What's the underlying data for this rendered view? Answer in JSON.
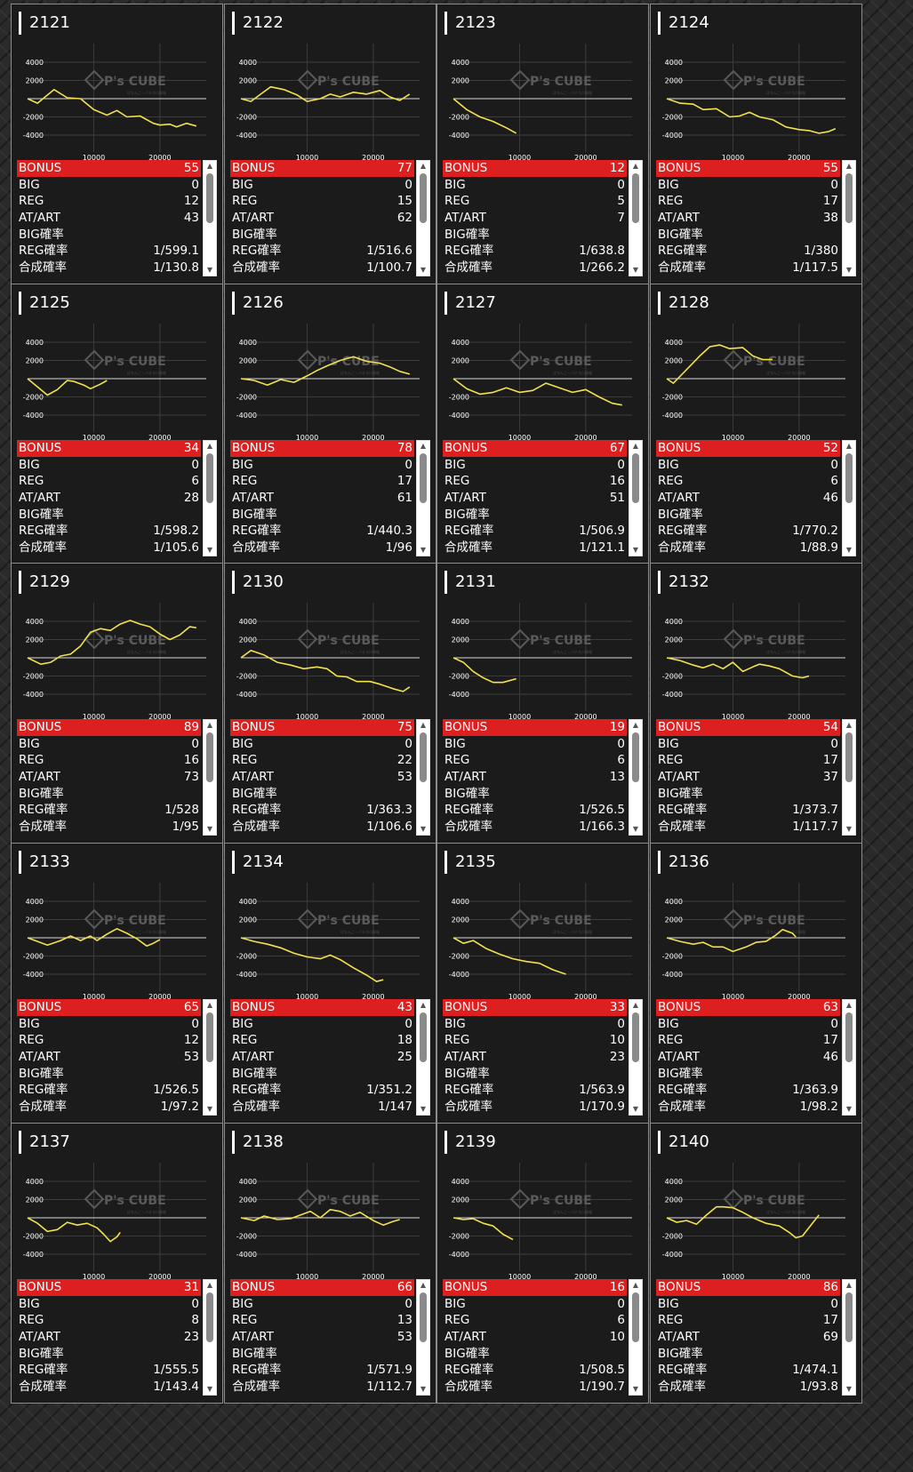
{
  "labels": {
    "bonus": "BONUS",
    "big": "BIG",
    "reg": "REG",
    "at": "AT/ART",
    "big_rate": "BIG確率",
    "reg_rate": "REG確率",
    "total_rate": "合成確率",
    "y_ticks": [
      "4000",
      "2000",
      "-2000",
      "-4000"
    ],
    "x_ticks": [
      "10000",
      "20000"
    ],
    "watermark": "P's CUBE",
    "watermark_small": "ぱちんこ・パチスロ情報",
    "scroll_up": "▲",
    "scroll_down": "▼"
  },
  "colors": {
    "line": "#f2e34c",
    "bonus_bar": "#dd1f1f",
    "card_bg": "#1b1b1b",
    "card_border": "#8c8c8c"
  },
  "machines": [
    {
      "id": "2121",
      "bonus": "55",
      "big": "0",
      "reg": "12",
      "at": "43",
      "big_rate": "",
      "reg_rate": "1/599.1",
      "total_rate": "1/130.8",
      "graph": [
        [
          0,
          0
        ],
        [
          1500,
          -500
        ],
        [
          4000,
          1000
        ],
        [
          6000,
          100
        ],
        [
          8000,
          0
        ],
        [
          10000,
          -1200
        ],
        [
          12000,
          -1800
        ],
        [
          13500,
          -1300
        ],
        [
          15000,
          -2000
        ],
        [
          17000,
          -1900
        ],
        [
          19000,
          -2700
        ],
        [
          20000,
          -2900
        ],
        [
          21500,
          -2800
        ],
        [
          22500,
          -3100
        ],
        [
          24000,
          -2700
        ],
        [
          25500,
          -3000
        ]
      ]
    },
    {
      "id": "2122",
      "bonus": "77",
      "big": "0",
      "reg": "15",
      "at": "62",
      "big_rate": "",
      "reg_rate": "1/516.6",
      "total_rate": "1/100.7",
      "graph": [
        [
          0,
          0
        ],
        [
          1500,
          -300
        ],
        [
          3000,
          500
        ],
        [
          4500,
          1300
        ],
        [
          6500,
          1000
        ],
        [
          8500,
          400
        ],
        [
          10000,
          -300
        ],
        [
          12000,
          0
        ],
        [
          13500,
          500
        ],
        [
          15000,
          200
        ],
        [
          17000,
          700
        ],
        [
          19000,
          500
        ],
        [
          21000,
          900
        ],
        [
          22500,
          200
        ],
        [
          24000,
          -200
        ],
        [
          25500,
          500
        ]
      ]
    },
    {
      "id": "2123",
      "bonus": "12",
      "big": "0",
      "reg": "5",
      "at": "7",
      "big_rate": "",
      "reg_rate": "1/638.8",
      "total_rate": "1/266.2",
      "graph": [
        [
          0,
          0
        ],
        [
          2000,
          -1200
        ],
        [
          4000,
          -2000
        ],
        [
          6000,
          -2500
        ],
        [
          8000,
          -3200
        ],
        [
          9500,
          -3800
        ]
      ]
    },
    {
      "id": "2124",
      "bonus": "55",
      "big": "0",
      "reg": "17",
      "at": "38",
      "big_rate": "",
      "reg_rate": "1/380",
      "total_rate": "1/117.5",
      "graph": [
        [
          0,
          0
        ],
        [
          2000,
          -500
        ],
        [
          4000,
          -600
        ],
        [
          5500,
          -1200
        ],
        [
          7500,
          -1100
        ],
        [
          9500,
          -2000
        ],
        [
          11000,
          -1900
        ],
        [
          12500,
          -1500
        ],
        [
          14000,
          -2000
        ],
        [
          16000,
          -2300
        ],
        [
          18000,
          -3100
        ],
        [
          20000,
          -3400
        ],
        [
          21500,
          -3500
        ],
        [
          23000,
          -3800
        ],
        [
          24500,
          -3600
        ],
        [
          25500,
          -3300
        ]
      ]
    },
    {
      "id": "2125",
      "bonus": "34",
      "big": "0",
      "reg": "6",
      "at": "28",
      "big_rate": "",
      "reg_rate": "1/598.2",
      "total_rate": "1/105.6",
      "graph": [
        [
          0,
          0
        ],
        [
          1500,
          -900
        ],
        [
          3000,
          -1800
        ],
        [
          4500,
          -1200
        ],
        [
          6000,
          -200
        ],
        [
          7000,
          -300
        ],
        [
          8500,
          -700
        ],
        [
          9500,
          -1100
        ],
        [
          11000,
          -600
        ],
        [
          12000,
          -200
        ]
      ]
    },
    {
      "id": "2126",
      "bonus": "78",
      "big": "0",
      "reg": "17",
      "at": "61",
      "big_rate": "",
      "reg_rate": "1/440.3",
      "total_rate": "1/96",
      "graph": [
        [
          0,
          0
        ],
        [
          2000,
          -200
        ],
        [
          4000,
          -700
        ],
        [
          6000,
          -100
        ],
        [
          8000,
          -400
        ],
        [
          10000,
          300
        ],
        [
          11500,
          900
        ],
        [
          13000,
          1400
        ],
        [
          15000,
          2000
        ],
        [
          17000,
          2400
        ],
        [
          19000,
          1900
        ],
        [
          21000,
          1700
        ],
        [
          22500,
          1300
        ],
        [
          24000,
          800
        ],
        [
          25500,
          500
        ]
      ]
    },
    {
      "id": "2127",
      "bonus": "67",
      "big": "0",
      "reg": "16",
      "at": "51",
      "big_rate": "",
      "reg_rate": "1/506.9",
      "total_rate": "1/121.1",
      "graph": [
        [
          0,
          0
        ],
        [
          2000,
          -1100
        ],
        [
          4000,
          -1700
        ],
        [
          6000,
          -1500
        ],
        [
          8000,
          -1000
        ],
        [
          10000,
          -1500
        ],
        [
          12000,
          -1300
        ],
        [
          14000,
          -500
        ],
        [
          16000,
          -1000
        ],
        [
          18000,
          -1500
        ],
        [
          20000,
          -1200
        ],
        [
          22000,
          -2000
        ],
        [
          24000,
          -2700
        ],
        [
          25500,
          -2900
        ]
      ]
    },
    {
      "id": "2128",
      "bonus": "52",
      "big": "0",
      "reg": "6",
      "at": "46",
      "big_rate": "",
      "reg_rate": "1/770.2",
      "total_rate": "1/88.9",
      "graph": [
        [
          0,
          0
        ],
        [
          1000,
          -500
        ],
        [
          3000,
          1000
        ],
        [
          5000,
          2500
        ],
        [
          6500,
          3500
        ],
        [
          8000,
          3700
        ],
        [
          9500,
          3300
        ],
        [
          11500,
          3400
        ],
        [
          13000,
          2500
        ],
        [
          14500,
          2100
        ],
        [
          16000,
          2100
        ]
      ]
    },
    {
      "id": "2129",
      "bonus": "89",
      "big": "0",
      "reg": "16",
      "at": "73",
      "big_rate": "",
      "reg_rate": "1/528",
      "total_rate": "1/95",
      "graph": [
        [
          0,
          0
        ],
        [
          2000,
          -700
        ],
        [
          3500,
          -500
        ],
        [
          5000,
          200
        ],
        [
          6500,
          400
        ],
        [
          8000,
          1300
        ],
        [
          9500,
          2800
        ],
        [
          11000,
          3200
        ],
        [
          12500,
          3000
        ],
        [
          14000,
          3700
        ],
        [
          15500,
          4100
        ],
        [
          17000,
          3700
        ],
        [
          18500,
          3400
        ],
        [
          20000,
          2600
        ],
        [
          21500,
          2000
        ],
        [
          23000,
          2500
        ],
        [
          24500,
          3400
        ],
        [
          25500,
          3300
        ]
      ]
    },
    {
      "id": "2130",
      "bonus": "75",
      "big": "0",
      "reg": "22",
      "at": "53",
      "big_rate": "",
      "reg_rate": "1/363.3",
      "total_rate": "1/106.6",
      "graph": [
        [
          0,
          0
        ],
        [
          1500,
          800
        ],
        [
          3500,
          300
        ],
        [
          5500,
          -500
        ],
        [
          7500,
          -800
        ],
        [
          9500,
          -1200
        ],
        [
          11500,
          -1000
        ],
        [
          13000,
          -1200
        ],
        [
          14500,
          -2000
        ],
        [
          16000,
          -2100
        ],
        [
          17500,
          -2600
        ],
        [
          19500,
          -2600
        ],
        [
          21000,
          -2900
        ],
        [
          23000,
          -3400
        ],
        [
          24500,
          -3700
        ],
        [
          25500,
          -3200
        ]
      ]
    },
    {
      "id": "2131",
      "bonus": "19",
      "big": "0",
      "reg": "6",
      "at": "13",
      "big_rate": "",
      "reg_rate": "1/526.5",
      "total_rate": "1/166.3",
      "graph": [
        [
          0,
          0
        ],
        [
          1500,
          -500
        ],
        [
          3000,
          -1500
        ],
        [
          4500,
          -2200
        ],
        [
          6000,
          -2700
        ],
        [
          7500,
          -2700
        ],
        [
          9500,
          -2300
        ]
      ]
    },
    {
      "id": "2132",
      "bonus": "54",
      "big": "0",
      "reg": "17",
      "at": "37",
      "big_rate": "",
      "reg_rate": "1/373.7",
      "total_rate": "1/117.7",
      "graph": [
        [
          0,
          0
        ],
        [
          2000,
          -300
        ],
        [
          4000,
          -800
        ],
        [
          5500,
          -1100
        ],
        [
          7000,
          -700
        ],
        [
          8500,
          -1200
        ],
        [
          10000,
          -500
        ],
        [
          11500,
          -1500
        ],
        [
          13000,
          -1000
        ],
        [
          14000,
          -700
        ],
        [
          15500,
          -900
        ],
        [
          17000,
          -1200
        ],
        [
          19000,
          -2000
        ],
        [
          20500,
          -2200
        ],
        [
          21500,
          -2000
        ]
      ]
    },
    {
      "id": "2133",
      "bonus": "65",
      "big": "0",
      "reg": "12",
      "at": "53",
      "big_rate": "",
      "reg_rate": "1/526.5",
      "total_rate": "1/97.2",
      "graph": [
        [
          0,
          0
        ],
        [
          1500,
          -400
        ],
        [
          3000,
          -800
        ],
        [
          5000,
          -300
        ],
        [
          6500,
          200
        ],
        [
          8000,
          -300
        ],
        [
          9500,
          200
        ],
        [
          10500,
          -300
        ],
        [
          12000,
          400
        ],
        [
          13500,
          1000
        ],
        [
          15000,
          500
        ],
        [
          16500,
          -100
        ],
        [
          18000,
          -900
        ],
        [
          19000,
          -600
        ],
        [
          20000,
          -200
        ]
      ]
    },
    {
      "id": "2134",
      "bonus": "43",
      "big": "0",
      "reg": "18",
      "at": "25",
      "big_rate": "",
      "reg_rate": "1/351.2",
      "total_rate": "1/147",
      "graph": [
        [
          0,
          0
        ],
        [
          2000,
          -400
        ],
        [
          4000,
          -700
        ],
        [
          6000,
          -1100
        ],
        [
          8000,
          -1700
        ],
        [
          10000,
          -2100
        ],
        [
          12000,
          -2300
        ],
        [
          13500,
          -1900
        ],
        [
          15000,
          -2400
        ],
        [
          17000,
          -3300
        ],
        [
          19000,
          -4100
        ],
        [
          20500,
          -4800
        ],
        [
          21500,
          -4600
        ]
      ]
    },
    {
      "id": "2135",
      "bonus": "33",
      "big": "0",
      "reg": "10",
      "at": "23",
      "big_rate": "",
      "reg_rate": "1/563.9",
      "total_rate": "1/170.9",
      "graph": [
        [
          0,
          0
        ],
        [
          1500,
          -600
        ],
        [
          3000,
          -300
        ],
        [
          5000,
          -1200
        ],
        [
          7000,
          -1800
        ],
        [
          9000,
          -2300
        ],
        [
          11000,
          -2600
        ],
        [
          13000,
          -2800
        ],
        [
          15000,
          -3500
        ],
        [
          17000,
          -4000
        ]
      ]
    },
    {
      "id": "2136",
      "bonus": "63",
      "big": "0",
      "reg": "17",
      "at": "46",
      "big_rate": "",
      "reg_rate": "1/363.9",
      "total_rate": "1/98.2",
      "graph": [
        [
          0,
          0
        ],
        [
          2000,
          -400
        ],
        [
          4000,
          -700
        ],
        [
          5500,
          -500
        ],
        [
          7000,
          -1000
        ],
        [
          8500,
          -1000
        ],
        [
          10000,
          -1500
        ],
        [
          12000,
          -1000
        ],
        [
          13500,
          -500
        ],
        [
          15000,
          -400
        ],
        [
          16500,
          300
        ],
        [
          17500,
          900
        ],
        [
          19000,
          500
        ],
        [
          19500,
          100
        ]
      ]
    },
    {
      "id": "2137",
      "bonus": "31",
      "big": "0",
      "reg": "8",
      "at": "23",
      "big_rate": "",
      "reg_rate": "1/555.5",
      "total_rate": "1/143.4",
      "graph": [
        [
          0,
          0
        ],
        [
          1500,
          -600
        ],
        [
          3000,
          -1500
        ],
        [
          4500,
          -1300
        ],
        [
          6000,
          -500
        ],
        [
          7500,
          -800
        ],
        [
          9000,
          -600
        ],
        [
          10500,
          -1100
        ],
        [
          11500,
          -1800
        ],
        [
          12500,
          -2600
        ],
        [
          13500,
          -2100
        ],
        [
          14000,
          -1600
        ]
      ]
    },
    {
      "id": "2138",
      "bonus": "66",
      "big": "0",
      "reg": "13",
      "at": "53",
      "big_rate": "",
      "reg_rate": "1/571.9",
      "total_rate": "1/112.7",
      "graph": [
        [
          0,
          0
        ],
        [
          2000,
          -300
        ],
        [
          3500,
          200
        ],
        [
          5500,
          -200
        ],
        [
          7500,
          -100
        ],
        [
          9000,
          300
        ],
        [
          10500,
          700
        ],
        [
          12000,
          0
        ],
        [
          13500,
          900
        ],
        [
          15000,
          700
        ],
        [
          16500,
          200
        ],
        [
          18000,
          600
        ],
        [
          20000,
          -300
        ],
        [
          21500,
          -800
        ],
        [
          23000,
          -400
        ],
        [
          24000,
          -200
        ]
      ]
    },
    {
      "id": "2139",
      "bonus": "16",
      "big": "0",
      "reg": "6",
      "at": "10",
      "big_rate": "",
      "reg_rate": "1/508.5",
      "total_rate": "1/190.7",
      "graph": [
        [
          0,
          0
        ],
        [
          1500,
          -200
        ],
        [
          3000,
          -100
        ],
        [
          4500,
          -600
        ],
        [
          6000,
          -900
        ],
        [
          7500,
          -1800
        ],
        [
          9000,
          -2400
        ]
      ]
    },
    {
      "id": "2140",
      "bonus": "86",
      "big": "0",
      "reg": "17",
      "at": "69",
      "big_rate": "",
      "reg_rate": "1/474.1",
      "total_rate": "1/93.8",
      "graph": [
        [
          0,
          0
        ],
        [
          1500,
          -500
        ],
        [
          3000,
          -300
        ],
        [
          4500,
          -700
        ],
        [
          6000,
          300
        ],
        [
          7500,
          1200
        ],
        [
          8500,
          1200
        ],
        [
          10000,
          1100
        ],
        [
          11500,
          600
        ],
        [
          13000,
          0
        ],
        [
          15000,
          -600
        ],
        [
          17000,
          -900
        ],
        [
          18500,
          -1600
        ],
        [
          19500,
          -2200
        ],
        [
          20500,
          -2000
        ],
        [
          22000,
          -600
        ],
        [
          23000,
          300
        ]
      ]
    }
  ]
}
